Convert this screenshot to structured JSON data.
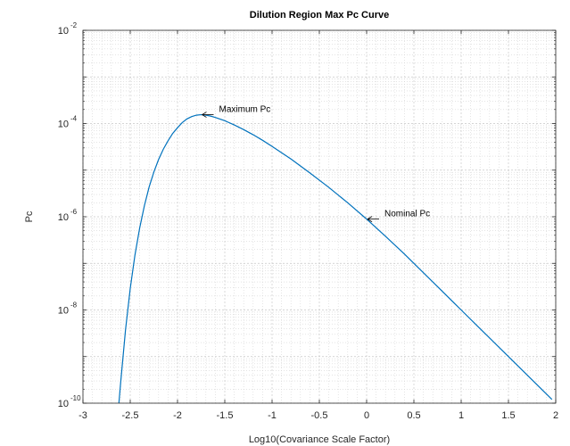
{
  "chart_data": {
    "type": "line",
    "title": "Dilution Region Max Pc Curve",
    "xlabel": "Log10(Covariance Scale Factor)",
    "ylabel": "Pc",
    "xlim": [
      -3,
      2
    ],
    "ylim_log10": [
      -10,
      -2
    ],
    "yscale": "log",
    "grid": true,
    "minor_grid": true,
    "x_ticks": [
      -3,
      -2.5,
      -2,
      -1.5,
      -1,
      -0.5,
      0,
      0.5,
      1,
      1.5,
      2
    ],
    "x_tick_labels": [
      "-3",
      "-2.5",
      "-2",
      "-1.5",
      "-1",
      "-0.5",
      "0",
      "0.5",
      "1",
      "1.5",
      "2"
    ],
    "y_ticks": [
      {
        "base": "10",
        "exp": "-2",
        "value_log10": -2
      },
      {
        "base": "10",
        "exp": "-4",
        "value_log10": -4
      },
      {
        "base": "10",
        "exp": "-6",
        "value_log10": -6
      },
      {
        "base": "10",
        "exp": "-8",
        "value_log10": -8
      },
      {
        "base": "10",
        "exp": "-10",
        "value_log10": -10
      }
    ],
    "series": [
      {
        "color": "#0072BD",
        "x": [
          -2.62,
          -2.6,
          -2.55,
          -2.5,
          -2.45,
          -2.4,
          -2.35,
          -2.3,
          -2.25,
          -2.2,
          -2.15,
          -2.1,
          -2.05,
          -2.0,
          -1.95,
          -1.9,
          -1.85,
          -1.8,
          -1.75,
          -1.7,
          -1.65,
          -1.6,
          -1.5,
          -1.4,
          -1.3,
          -1.2,
          -1.1,
          -1.0,
          -0.8,
          -0.6,
          -0.4,
          -0.2,
          0.0,
          0.2,
          0.4,
          0.6,
          0.8,
          1.0,
          1.2,
          1.4,
          1.6,
          1.8,
          1.96
        ],
        "y_log10": [
          -10.0,
          -9.53,
          -8.43,
          -7.54,
          -6.82,
          -6.24,
          -5.76,
          -5.36,
          -5.04,
          -4.77,
          -4.55,
          -4.37,
          -4.21,
          -4.09,
          -3.98,
          -3.9,
          -3.85,
          -3.82,
          -3.81,
          -3.82,
          -3.84,
          -3.87,
          -3.94,
          -4.03,
          -4.13,
          -4.24,
          -4.36,
          -4.49,
          -4.76,
          -5.06,
          -5.37,
          -5.7,
          -6.05,
          -6.42,
          -6.8,
          -7.2,
          -7.6,
          -8.0,
          -8.4,
          -8.8,
          -9.2,
          -9.6,
          -9.92
        ]
      }
    ],
    "annotations": [
      {
        "text": "Maximum Pc",
        "x": -1.75,
        "y_log10": -3.81
      },
      {
        "text": "Nominal Pc",
        "x": 0.0,
        "y_log10": -6.05
      }
    ]
  }
}
